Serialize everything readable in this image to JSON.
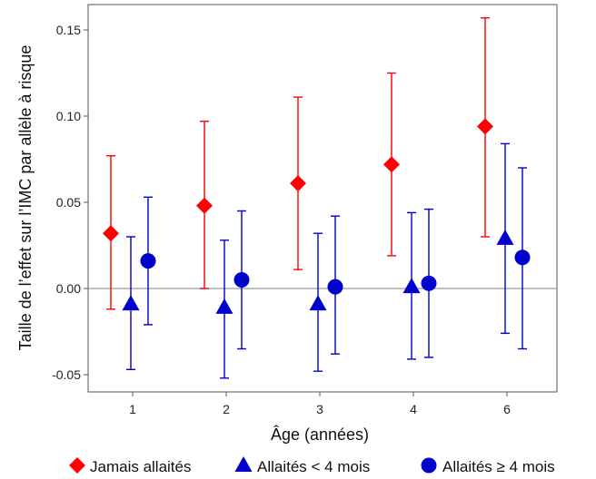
{
  "chart_data": {
    "type": "scatter",
    "title": "",
    "xlabel": "Âge (années)",
    "ylabel": "Taille de l’effet sur l’IMC par allèle à risque",
    "categories": [
      "1",
      "2",
      "3",
      "4",
      "6"
    ],
    "ylim": [
      -0.06,
      0.165
    ],
    "yticks": [
      "0.15",
      "0.10",
      "0.05",
      "0.00",
      "-0.05"
    ],
    "ytick_values": [
      0.15,
      0.1,
      0.05,
      0.0,
      -0.05
    ],
    "reference_line": 0,
    "grid": false,
    "legend_position": "bottom",
    "series": [
      {
        "name": "Jamais allaités",
        "marker": "diamond",
        "color": "#ff0000",
        "values": [
          0.032,
          0.048,
          0.061,
          0.072,
          0.094
        ],
        "lower": [
          -0.012,
          0.0,
          0.011,
          0.019,
          0.03
        ],
        "upper": [
          0.077,
          0.097,
          0.111,
          0.125,
          0.157
        ]
      },
      {
        "name": "Allaités < 4 mois",
        "marker": "triangle",
        "color": "#0000cc",
        "values": [
          -0.009,
          -0.011,
          -0.009,
          0.001,
          0.029
        ],
        "lower": [
          -0.047,
          -0.052,
          -0.048,
          -0.041,
          -0.026
        ],
        "upper": [
          0.03,
          0.028,
          0.032,
          0.044,
          0.084
        ]
      },
      {
        "name": "Allaités ≥ 4 mois",
        "marker": "circle",
        "color": "#0000cc",
        "values": [
          0.016,
          0.005,
          0.001,
          0.003,
          0.018
        ],
        "lower": [
          -0.021,
          -0.035,
          -0.038,
          -0.04,
          -0.035
        ],
        "upper": [
          0.053,
          0.045,
          0.042,
          0.046,
          0.07
        ]
      }
    ]
  }
}
